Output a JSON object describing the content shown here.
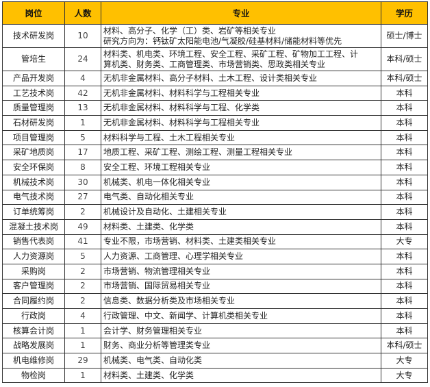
{
  "header": {
    "position": "岗位",
    "count": "人数",
    "major": "专业",
    "education": "学历"
  },
  "rows": [
    {
      "position": "技术研发岗",
      "count": "10",
      "major": [
        "材料、高分子、化学（工）类、岩矿等相关专业",
        "研究方向为：钙钛矿太阳能电池/气凝胶/硅基材料/储能材料等优先"
      ],
      "education": "硕士/博士"
    },
    {
      "position": "管培生",
      "count": "24",
      "major": [
        "材料类、机电类、环境工程、安全工程、采矿工程、矿物加工工程、计",
        "算机类、财务类、工商管理类、市场营销类、思政类相关专业"
      ],
      "education": "本科/硕士"
    },
    {
      "position": "产品开发岗",
      "count": "4",
      "major": [
        "无机非金属材料、高分子材料、土木工程、设计类相关专业"
      ],
      "education": "本科/硕士"
    },
    {
      "position": "工艺技术岗",
      "count": "42",
      "major": [
        "无机非金属材料、材料科学与工程相关专业"
      ],
      "education": "本科"
    },
    {
      "position": "质量管理岗",
      "count": "13",
      "major": [
        "无机非金属材料、材料科学与工程、化学类"
      ],
      "education": "本科"
    },
    {
      "position": "石材研发岗",
      "count": "1",
      "major": [
        "无机非金属材料、材料科学与工程相关专业"
      ],
      "education": "本科"
    },
    {
      "position": "项目管理岗",
      "count": "5",
      "major": [
        "材料科学与工程、土木工程相关专业"
      ],
      "education": "本科"
    },
    {
      "position": "采矿地质岗",
      "count": "17",
      "major": [
        "地质工程、采矿工程、测绘工程、测量工程相关专业"
      ],
      "education": "本科"
    },
    {
      "position": "安全环保岗",
      "count": "8",
      "major": [
        "安全工程、环境工程相关专业"
      ],
      "education": "本科"
    },
    {
      "position": "机械技术岗",
      "count": "30",
      "major": [
        "机械类、机电一体化相关专业"
      ],
      "education": "本科"
    },
    {
      "position": "电气技术岗",
      "count": "27",
      "major": [
        "电气类、自动化相关专业"
      ],
      "education": "本科"
    },
    {
      "position": "订单统筹岗",
      "count": "2",
      "major": [
        "机械设计及自动化、土建相关专业"
      ],
      "education": "本科"
    },
    {
      "position": "混凝土技术岗",
      "count": "49",
      "major": [
        "材料类、土建类、化学类"
      ],
      "education": "本科"
    },
    {
      "position": "销售代表岗",
      "count": "41",
      "major": [
        "专业不限，市场营销、材料类、土建类相关专业"
      ],
      "education": "大专"
    },
    {
      "position": "人力资源岗",
      "count": "5",
      "major": [
        "人力资源、工商管理、心理学相关专业"
      ],
      "education": "本科"
    },
    {
      "position": "采购岗",
      "count": "2",
      "major": [
        "市场营销、物流管理相关专业"
      ],
      "education": "本科"
    },
    {
      "position": "客户管理岗",
      "count": "2",
      "major": [
        "市场营销、国际贸易相关专业"
      ],
      "education": "本科"
    },
    {
      "position": "合同履约岗",
      "count": "2",
      "major": [
        "信息类、数据分析类及市场相关专业"
      ],
      "education": "本科"
    },
    {
      "position": "行政岗",
      "count": "4",
      "major": [
        "行政管理、中文、新闻学、计算机类相关专业"
      ],
      "education": "本科"
    },
    {
      "position": "核算会计岗",
      "count": "1",
      "major": [
        "会计学、财务管理相关专业"
      ],
      "education": "本科"
    },
    {
      "position": "战略发展岗",
      "count": "1",
      "major": [
        "财务、商业分析等管理类专业"
      ],
      "education": "本科/硕士"
    },
    {
      "position": "机电维修岗",
      "count": "29",
      "major": [
        "机械类、电气类、自动化类"
      ],
      "education": "大专"
    },
    {
      "position": "物检岗",
      "count": "1",
      "major": [
        "材料类、土建类、化学类"
      ],
      "education": "大专"
    }
  ],
  "colors": {
    "header_bg": "#FFC000"
  }
}
